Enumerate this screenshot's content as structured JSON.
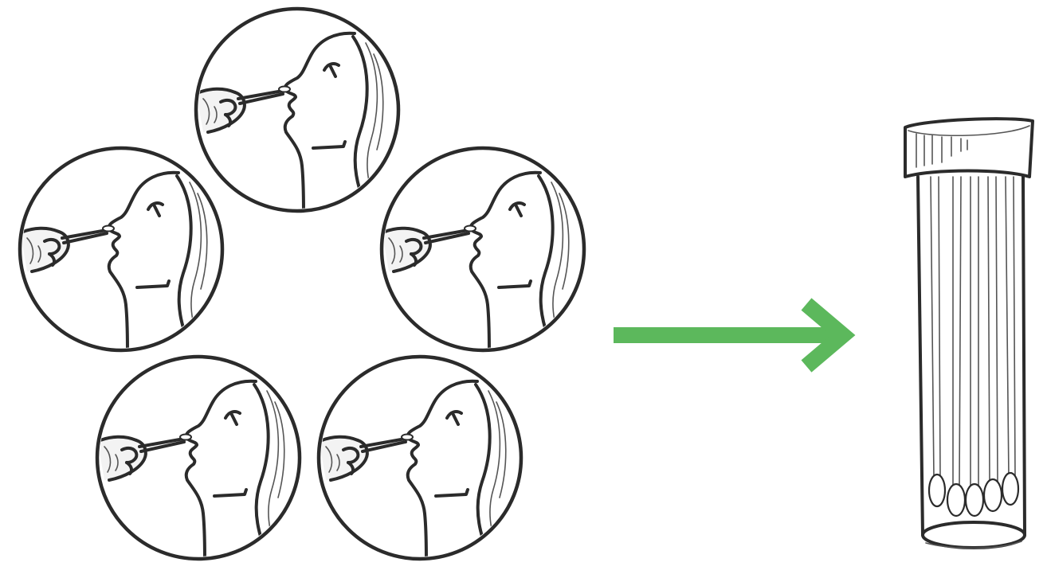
{
  "scene": {
    "panels": [
      {
        "name": "swab-panel-1"
      },
      {
        "name": "swab-panel-2"
      },
      {
        "name": "swab-panel-3"
      },
      {
        "name": "swab-panel-4"
      },
      {
        "name": "swab-panel-5"
      }
    ],
    "arrow": {
      "icon": "arrow-right-icon",
      "color": "#5cb85c"
    },
    "tube": {
      "icon": "swab-tube-icon",
      "swab_count": 5
    }
  }
}
